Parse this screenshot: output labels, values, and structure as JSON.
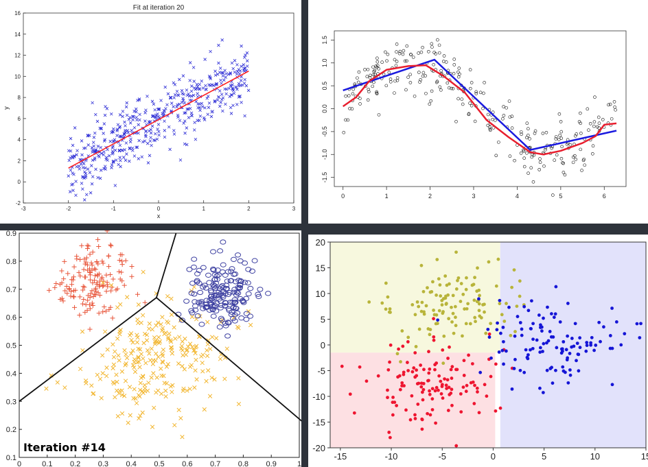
{
  "colors": {
    "divider": "#2e333b",
    "p1_points": "#2f2fd6",
    "p1_line": "#ff2020",
    "p2_points": "#111111",
    "p2_blue": "#1a1adf",
    "p2_red": "#e81e2e",
    "p3_red": "#e8553a",
    "p3_orange": "#f2b630",
    "p3_blue": "#3c3fa0",
    "p4_yellow": "#b8b43a",
    "p4_red": "#ee1530",
    "p4_blue": "#1515d6",
    "p4_bg_yellow": "#f7f8de",
    "p4_bg_red": "#fde0e3",
    "p4_bg_blue": "#e2e2fb"
  },
  "chart_data": [
    {
      "id": "linear-fit",
      "type": "scatter",
      "title": "Fit at iteration 20",
      "xlabel": "x",
      "ylabel": "y",
      "xlim": [
        -3,
        3
      ],
      "ylim": [
        -2,
        16
      ],
      "x_ticks": [
        "-3",
        "-2",
        "-1",
        "0",
        "1",
        "2",
        "3"
      ],
      "y_ticks": [
        "-2",
        "0",
        "2",
        "4",
        "6",
        "8",
        "10",
        "12",
        "14",
        "16"
      ],
      "point_marker": "x",
      "series": [
        {
          "kind": "scatter",
          "n_points": 500,
          "x_range": [
            -2,
            2
          ],
          "trend": {
            "slope": 2.3,
            "intercept": 5.9
          },
          "noise_sd": 1.5
        },
        {
          "kind": "line",
          "x": [
            -2,
            2
          ],
          "y": [
            1.3,
            10.5
          ]
        }
      ]
    },
    {
      "id": "sine-regression",
      "type": "line",
      "xlim": [
        -0.2,
        6.5
      ],
      "ylim": [
        -1.7,
        1.7
      ],
      "x_ticks": [
        "0",
        "1",
        "2",
        "3",
        "4",
        "5",
        "6"
      ],
      "y_ticks": [
        "-1.5",
        "-1.0",
        "-0.5",
        "0.0",
        "0.5",
        "1.0",
        "1.5"
      ],
      "scatter": {
        "marker": "o",
        "n_points": 300,
        "x_range": [
          0,
          6.28
        ],
        "function": "sin(x)",
        "noise_sd": 0.3
      },
      "series": [
        {
          "kind": "piecewise-linear",
          "x": [
            0,
            2.1,
            4.3,
            6.28
          ],
          "y": [
            0.4,
            1.07,
            -0.9,
            -0.48
          ]
        },
        {
          "kind": "smooth-fit",
          "x": [
            0,
            0.3,
            0.6,
            1.0,
            1.5,
            1.9,
            2.3,
            2.8,
            3.3,
            3.8,
            4.3,
            4.6,
            5.0,
            5.5,
            5.8,
            6.0,
            6.28
          ],
          "y": [
            0.05,
            0.25,
            0.6,
            0.85,
            0.93,
            0.95,
            0.72,
            0.35,
            -0.25,
            -0.62,
            -0.95,
            -1.0,
            -0.92,
            -0.75,
            -0.6,
            -0.35,
            -0.32
          ]
        }
      ]
    },
    {
      "id": "kmeans-voronoi",
      "type": "scatter",
      "annotation": "Iteration #14",
      "xlim": [
        0,
        1
      ],
      "ylim": [
        0.1,
        0.9
      ],
      "x_ticks": [
        "0",
        "0.1",
        "0.2",
        "0.3",
        "0.4",
        "0.5",
        "0.6",
        "0.7",
        "0.8",
        "0.9",
        "1"
      ],
      "y_ticks": [
        "0.1",
        "0.2",
        "0.3",
        "0.4",
        "0.5",
        "0.6",
        "0.7",
        "0.8",
        "0.9"
      ],
      "clusters": [
        {
          "marker": "+",
          "center": [
            0.27,
            0.74
          ],
          "n_points": 150
        },
        {
          "marker": "x",
          "center": [
            0.49,
            0.45
          ],
          "n_points": 260
        },
        {
          "marker": "o",
          "center": [
            0.73,
            0.68
          ],
          "n_points": 180
        }
      ],
      "boundaries": [
        {
          "x": [
            0.0,
            0.49
          ],
          "y": [
            0.3,
            0.67
          ]
        },
        {
          "x": [
            0.49,
            0.56
          ],
          "y": [
            0.67,
            0.9
          ]
        },
        {
          "x": [
            0.49,
            1.02
          ],
          "y": [
            0.67,
            0.22
          ]
        }
      ]
    },
    {
      "id": "decision-regions",
      "type": "scatter",
      "xlim": [
        -16,
        15
      ],
      "ylim": [
        -20,
        20
      ],
      "x_ticks": [
        "-15",
        "-10",
        "-5",
        "0",
        "5",
        "10",
        "15"
      ],
      "y_ticks": [
        "-20",
        "-15",
        "-10",
        "-5",
        "0",
        "5",
        "10",
        "15",
        "20"
      ],
      "regions": [
        {
          "name": "yellow",
          "x": [
            -16,
            0.7
          ],
          "y": [
            -1.5,
            20
          ]
        },
        {
          "name": "red",
          "x": [
            -16,
            0.2
          ],
          "y": [
            -20,
            -1.5
          ]
        },
        {
          "name": "blue",
          "x": [
            0.7,
            15
          ],
          "y": [
            -20,
            20
          ]
        }
      ],
      "classes": [
        {
          "center": [
            -4,
            8
          ],
          "n_points": 120
        },
        {
          "center": [
            -6,
            -8
          ],
          "n_points": 130
        },
        {
          "center": [
            6,
            1
          ],
          "n_points": 120
        }
      ]
    }
  ]
}
